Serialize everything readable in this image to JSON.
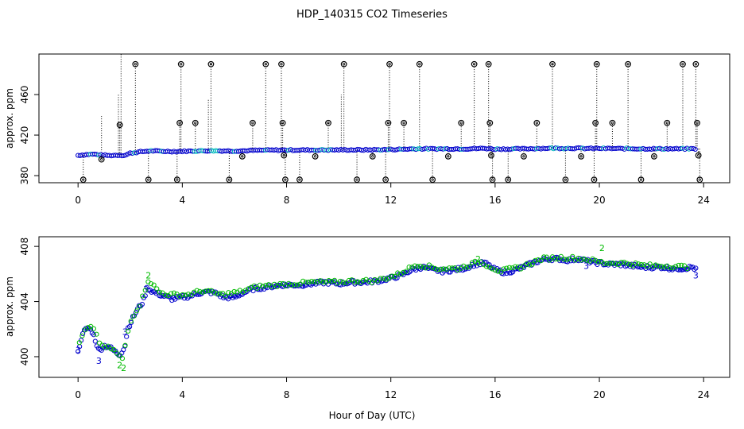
{
  "title": "HDP_140315  CO2 Timeseries",
  "shared_xlabel": "Hour of Day (UTC)",
  "colors": {
    "series1": "#0000cc",
    "series2": "#00bb00",
    "raw": "#000000",
    "axis": "#000000"
  },
  "chart_data": [
    {
      "type": "scatter",
      "name": "top-panel",
      "ylabel": "approx. ppm",
      "xlim": [
        -1.5,
        25
      ],
      "ylim": [
        373,
        500
      ],
      "xticks": [
        "0",
        "4",
        "8",
        "12",
        "16",
        "20",
        "24"
      ],
      "yticks": [
        "380",
        "420",
        "460"
      ],
      "baseline": [
        [
          0.0,
          400
        ],
        [
          0.3,
          400.8
        ],
        [
          0.6,
          401.2
        ],
        [
          0.9,
          400.3
        ],
        [
          1.2,
          399.8
        ],
        [
          1.5,
          400.2
        ],
        [
          1.8,
          400.0
        ],
        [
          2.0,
          402.2
        ],
        [
          2.4,
          403.5
        ],
        [
          2.8,
          404.5
        ],
        [
          3.2,
          404.0
        ],
        [
          3.8,
          403.8
        ],
        [
          4.0,
          404.0
        ],
        [
          5.0,
          404.6
        ],
        [
          6.0,
          404.3
        ],
        [
          7.0,
          405.0
        ],
        [
          7.8,
          405.2
        ],
        [
          8.0,
          405.2
        ],
        [
          9.0,
          405.3
        ],
        [
          10.0,
          405.4
        ],
        [
          11.0,
          405.4
        ],
        [
          12.0,
          405.7
        ],
        [
          13.0,
          406.5
        ],
        [
          14.0,
          406.4
        ],
        [
          15.0,
          406.5
        ],
        [
          15.6,
          406.9
        ],
        [
          16.0,
          406.2
        ],
        [
          17.0,
          406.4
        ],
        [
          18.0,
          407.0
        ],
        [
          19.0,
          407.0
        ],
        [
          19.6,
          406.8
        ],
        [
          20.0,
          406.8
        ],
        [
          21.0,
          406.6
        ],
        [
          22.0,
          406.5
        ],
        [
          23.0,
          406.4
        ],
        [
          23.7,
          406.5
        ]
      ],
      "spikes": [
        [
          0.2,
          376
        ],
        [
          0.9,
          396
        ],
        [
          1.6,
          430
        ],
        [
          2.2,
          490
        ],
        [
          2.7,
          376
        ],
        [
          3.8,
          376
        ],
        [
          3.9,
          432
        ],
        [
          3.95,
          490
        ],
        [
          4.5,
          432
        ],
        [
          5.1,
          490
        ],
        [
          5.8,
          376
        ],
        [
          6.3,
          399
        ],
        [
          6.7,
          432
        ],
        [
          7.2,
          490
        ],
        [
          7.8,
          490
        ],
        [
          7.85,
          432
        ],
        [
          7.9,
          400
        ],
        [
          7.95,
          376
        ],
        [
          8.5,
          376
        ],
        [
          9.1,
          399
        ],
        [
          9.6,
          432
        ],
        [
          10.2,
          490
        ],
        [
          10.7,
          376
        ],
        [
          11.3,
          399
        ],
        [
          11.8,
          376
        ],
        [
          11.9,
          432
        ],
        [
          11.95,
          490
        ],
        [
          12.5,
          432
        ],
        [
          13.1,
          490
        ],
        [
          13.6,
          376
        ],
        [
          14.2,
          399
        ],
        [
          14.7,
          432
        ],
        [
          15.2,
          490
        ],
        [
          15.75,
          490
        ],
        [
          15.8,
          432
        ],
        [
          15.85,
          400
        ],
        [
          15.9,
          376
        ],
        [
          16.5,
          376
        ],
        [
          17.1,
          399
        ],
        [
          17.6,
          432
        ],
        [
          18.2,
          490
        ],
        [
          18.7,
          376
        ],
        [
          19.3,
          399
        ],
        [
          19.8,
          376
        ],
        [
          19.85,
          432
        ],
        [
          19.9,
          490
        ],
        [
          20.5,
          432
        ],
        [
          21.1,
          490
        ],
        [
          21.6,
          376
        ],
        [
          22.1,
          399
        ],
        [
          22.6,
          432
        ],
        [
          23.2,
          490
        ],
        [
          23.7,
          490
        ],
        [
          23.75,
          432
        ],
        [
          23.8,
          400
        ],
        [
          23.85,
          376
        ]
      ]
    },
    {
      "type": "scatter",
      "name": "bottom-panel",
      "ylabel": "approx. ppm",
      "xlim": [
        -1.5,
        25
      ],
      "ylim": [
        398.5,
        408.7
      ],
      "xticks": [
        "0",
        "4",
        "8",
        "12",
        "16",
        "20",
        "24"
      ],
      "yticks": [
        "400",
        "404",
        "408"
      ],
      "series": [
        {
          "name": "3",
          "color": "#0000cc",
          "points": [
            [
              0.0,
              400.3
            ],
            [
              0.1,
              401.2
            ],
            [
              0.25,
              401.9
            ],
            [
              0.4,
              402.1
            ],
            [
              0.55,
              401.8
            ],
            [
              0.7,
              401.0
            ],
            [
              0.8,
              400.4
            ],
            [
              0.9,
              400.6
            ],
            [
              1.0,
              400.8
            ],
            [
              1.2,
              400.7
            ],
            [
              1.4,
              400.4
            ],
            [
              1.6,
              400.1
            ],
            [
              1.8,
              400.8
            ],
            [
              1.9,
              402.0
            ],
            [
              2.1,
              402.8
            ],
            [
              2.3,
              403.5
            ],
            [
              2.5,
              404.0
            ],
            [
              2.65,
              405.0
            ],
            [
              2.8,
              404.8
            ],
            [
              3.0,
              404.6
            ],
            [
              3.3,
              404.4
            ],
            [
              3.6,
              404.2
            ],
            [
              4.0,
              404.3
            ],
            [
              4.3,
              404.4
            ],
            [
              4.6,
              404.6
            ],
            [
              5.0,
              404.7
            ],
            [
              5.3,
              404.6
            ],
            [
              5.6,
              404.3
            ],
            [
              6.0,
              404.3
            ],
            [
              6.3,
              404.6
            ],
            [
              6.7,
              404.9
            ],
            [
              7.0,
              405.0
            ],
            [
              7.4,
              405.1
            ],
            [
              7.8,
              405.2
            ],
            [
              8.0,
              405.2
            ],
            [
              8.5,
              405.2
            ],
            [
              9.0,
              405.3
            ],
            [
              9.5,
              405.4
            ],
            [
              10.0,
              405.3
            ],
            [
              10.5,
              405.4
            ],
            [
              11.0,
              405.4
            ],
            [
              11.5,
              405.5
            ],
            [
              12.0,
              405.7
            ],
            [
              12.4,
              405.9
            ],
            [
              12.8,
              406.3
            ],
            [
              13.2,
              406.5
            ],
            [
              13.6,
              406.3
            ],
            [
              14.0,
              406.2
            ],
            [
              14.4,
              406.3
            ],
            [
              14.8,
              406.4
            ],
            [
              15.2,
              406.7
            ],
            [
              15.6,
              406.8
            ],
            [
              16.0,
              406.3
            ],
            [
              16.4,
              406.1
            ],
            [
              16.8,
              406.3
            ],
            [
              17.2,
              406.6
            ],
            [
              17.6,
              406.9
            ],
            [
              18.0,
              407.1
            ],
            [
              18.4,
              407.1
            ],
            [
              18.8,
              407.0
            ],
            [
              19.2,
              407.1
            ],
            [
              19.6,
              406.9
            ],
            [
              20.0,
              406.8
            ],
            [
              20.4,
              406.7
            ],
            [
              20.8,
              406.7
            ],
            [
              21.2,
              406.6
            ],
            [
              21.6,
              406.5
            ],
            [
              22.0,
              406.5
            ],
            [
              22.4,
              406.5
            ],
            [
              22.8,
              406.4
            ],
            [
              23.2,
              406.4
            ],
            [
              23.6,
              406.5
            ],
            [
              23.7,
              406.3
            ]
          ],
          "labeled": [
            [
              0.0,
              400.5
            ],
            [
              0.8,
              399.7
            ],
            [
              1.8,
              401.8
            ],
            [
              2.6,
              404.9
            ],
            [
              19.5,
              406.6
            ],
            [
              23.7,
              405.9
            ]
          ]
        },
        {
          "name": "2",
          "color": "#00bb00",
          "points": [
            [
              0.05,
              401.0
            ],
            [
              0.3,
              402.0
            ],
            [
              0.6,
              402.1
            ],
            [
              0.9,
              400.7
            ],
            [
              1.3,
              400.6
            ],
            [
              1.7,
              399.8
            ],
            [
              2.0,
              402.6
            ],
            [
              2.4,
              403.9
            ],
            [
              2.7,
              405.6
            ],
            [
              3.1,
              404.7
            ],
            [
              3.5,
              404.5
            ],
            [
              4.2,
              404.5
            ],
            [
              4.8,
              404.8
            ],
            [
              5.5,
              404.5
            ],
            [
              6.2,
              404.7
            ],
            [
              6.9,
              405.1
            ],
            [
              7.6,
              405.2
            ],
            [
              8.3,
              405.3
            ],
            [
              9.0,
              405.4
            ],
            [
              9.8,
              405.4
            ],
            [
              10.6,
              405.5
            ],
            [
              11.4,
              405.5
            ],
            [
              12.2,
              405.9
            ],
            [
              13.0,
              406.7
            ],
            [
              13.8,
              406.4
            ],
            [
              14.6,
              406.4
            ],
            [
              15.4,
              406.9
            ],
            [
              16.2,
              406.2
            ],
            [
              17.0,
              406.5
            ],
            [
              17.8,
              407.1
            ],
            [
              18.6,
              407.2
            ],
            [
              19.4,
              407.1
            ],
            [
              20.2,
              406.8
            ],
            [
              21.0,
              406.8
            ],
            [
              21.8,
              406.6
            ],
            [
              22.6,
              406.6
            ],
            [
              23.4,
              406.5
            ]
          ],
          "labeled": [
            [
              1.6,
              399.4
            ],
            [
              1.75,
              399.2
            ],
            [
              2.7,
              405.9
            ],
            [
              15.35,
              407.1
            ],
            [
              20.1,
              407.9
            ]
          ]
        }
      ]
    }
  ]
}
